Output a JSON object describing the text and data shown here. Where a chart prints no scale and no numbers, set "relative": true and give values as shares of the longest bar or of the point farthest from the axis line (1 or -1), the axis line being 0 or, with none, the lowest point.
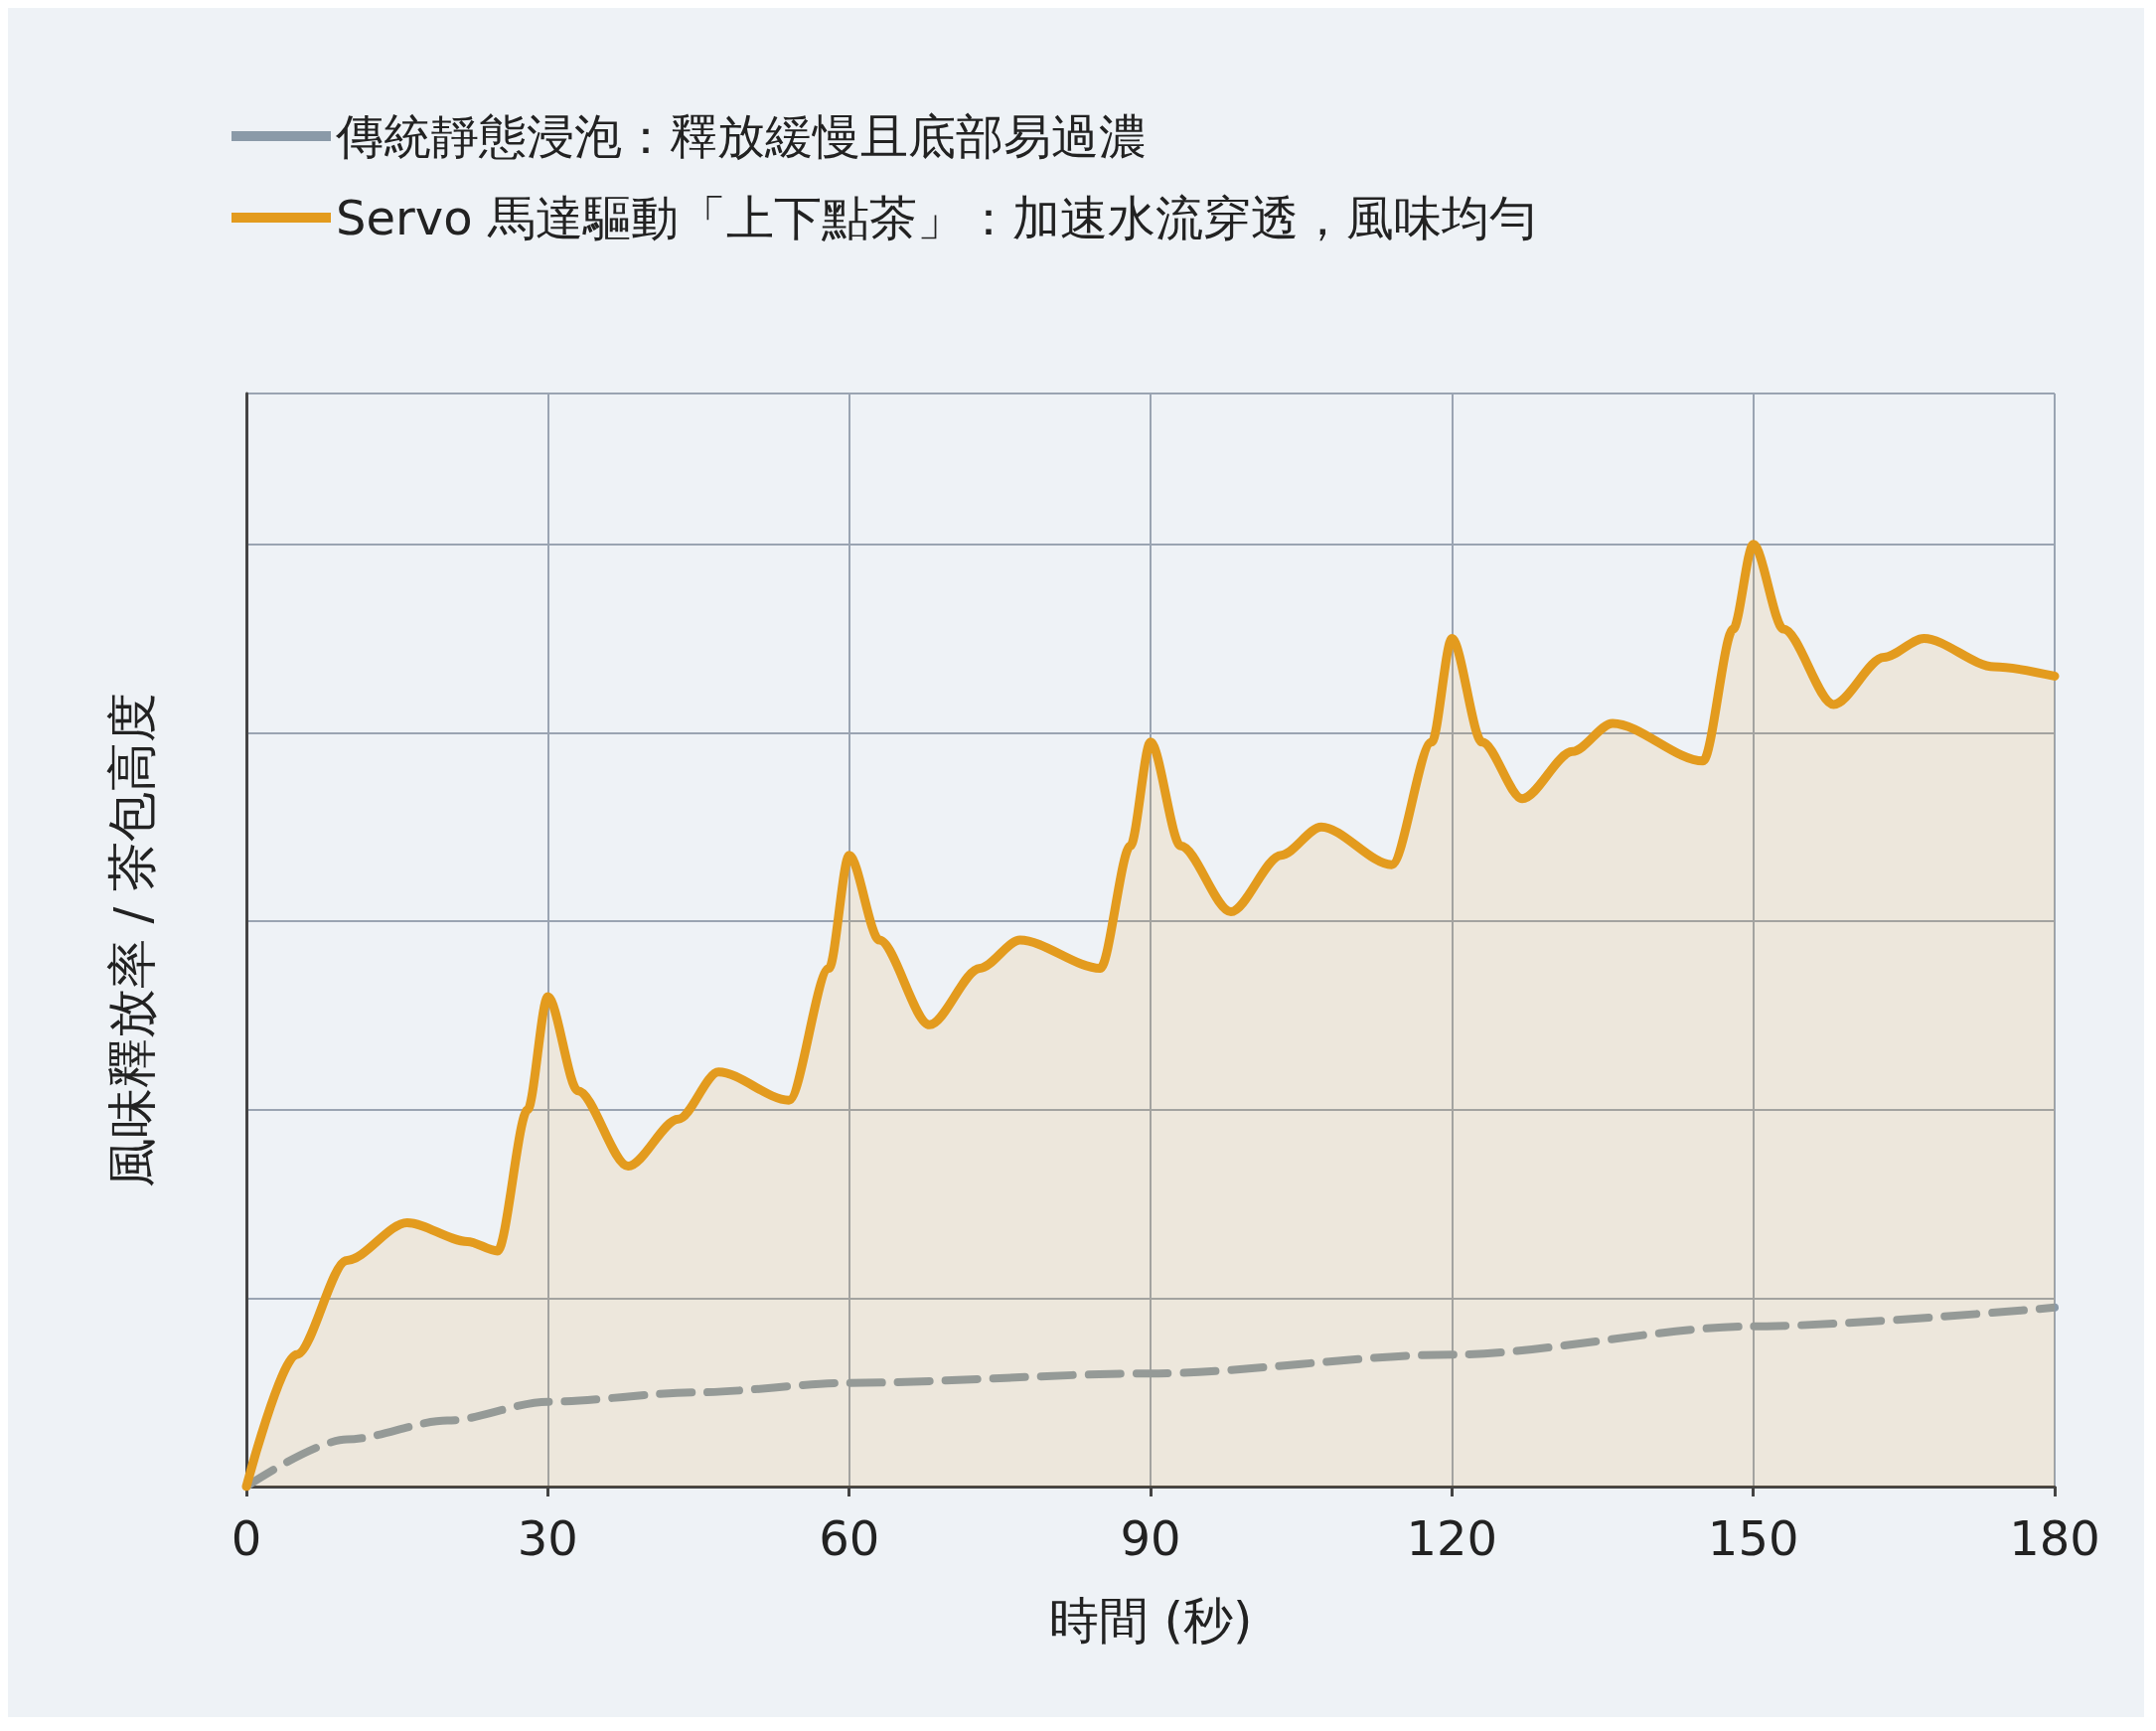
{
  "chart_data": {
    "type": "line",
    "xlabel": "時間 (秒)",
    "ylabel": "風味釋放率 / 茶包高度",
    "relative": true,
    "xlim": [
      0,
      180
    ],
    "xticks": [
      0,
      30,
      60,
      90,
      120,
      150,
      180
    ],
    "grid": true,
    "legend": "top left",
    "marker": "none",
    "series": [
      {
        "name": "傳統靜態浸泡：釋放緩慢且底部易過濃",
        "color": "#8a9aa8",
        "line_style": "dashed",
        "x": [
          0,
          10,
          20,
          30,
          45,
          60,
          90,
          120,
          150,
          180
        ],
        "values": [
          0,
          0.05,
          0.07,
          0.09,
          0.1,
          0.11,
          0.12,
          0.14,
          0.17,
          0.19
        ]
      },
      {
        "name": "Servo 馬達驅動「上下點茶」：加速水流穿透，風味均勻",
        "color": "#e39b1e",
        "type": "area",
        "line_style": "solid",
        "x": [
          0,
          5,
          10,
          16,
          22,
          25,
          28,
          30,
          33,
          38,
          43,
          47,
          54,
          58,
          60,
          63,
          68,
          73,
          77,
          85,
          88,
          90,
          93,
          98,
          103,
          107,
          114,
          118,
          120,
          123,
          127,
          132,
          136,
          145,
          148,
          150,
          153,
          158,
          163,
          167,
          174,
          180
        ],
        "values": [
          0,
          0.14,
          0.24,
          0.28,
          0.26,
          0.25,
          0.4,
          0.52,
          0.42,
          0.34,
          0.39,
          0.44,
          0.41,
          0.55,
          0.67,
          0.58,
          0.49,
          0.55,
          0.58,
          0.55,
          0.68,
          0.79,
          0.68,
          0.61,
          0.67,
          0.7,
          0.66,
          0.79,
          0.9,
          0.79,
          0.73,
          0.78,
          0.81,
          0.77,
          0.91,
          1,
          0.91,
          0.83,
          0.88,
          0.9,
          0.87,
          0.86
        ]
      }
    ]
  }
}
